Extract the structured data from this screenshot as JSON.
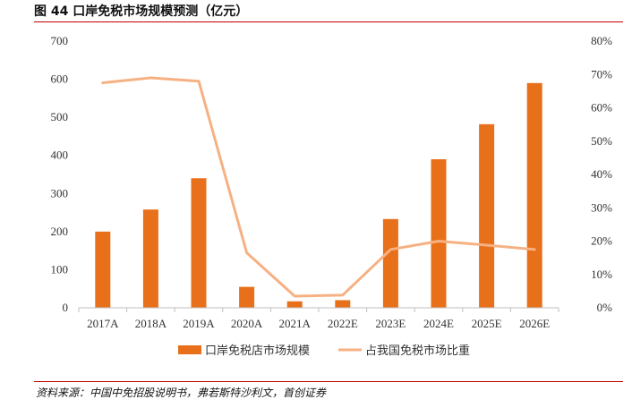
{
  "figure_title": "图 44 口岸免税市场规模预测（亿元）",
  "source": "资料来源：中国中免招股说明书，弗若斯特沙利文，首创证券",
  "colors": {
    "bar": "#e8701a",
    "line": "#f6b183",
    "rule": "#c00000"
  },
  "chart_data": {
    "type": "bar",
    "categories": [
      "2017A",
      "2018A",
      "2019A",
      "2020A",
      "2021A",
      "2022E",
      "2023E",
      "2024E",
      "2025E",
      "2026E"
    ],
    "series": [
      {
        "name": "口岸免税店市场规模",
        "kind": "bar",
        "axis": "left",
        "values": [
          200,
          258,
          340,
          55,
          17,
          20,
          233,
          390,
          482,
          590
        ]
      },
      {
        "name": "占我国免税市场比重",
        "kind": "line",
        "axis": "right",
        "values": [
          67.5,
          69.0,
          68.0,
          16.5,
          3.5,
          3.8,
          17.5,
          20.0,
          18.8,
          17.5
        ]
      }
    ],
    "left_axis": {
      "ylim": [
        0,
        700
      ],
      "ticks": [
        "0",
        "100",
        "200",
        "300",
        "400",
        "500",
        "600",
        "700"
      ]
    },
    "right_axis": {
      "ylim": [
        0,
        80
      ],
      "ticks": [
        "0%",
        "10%",
        "20%",
        "30%",
        "40%",
        "50%",
        "60%",
        "70%",
        "80%"
      ]
    },
    "grid": false,
    "legend": "bottom"
  }
}
